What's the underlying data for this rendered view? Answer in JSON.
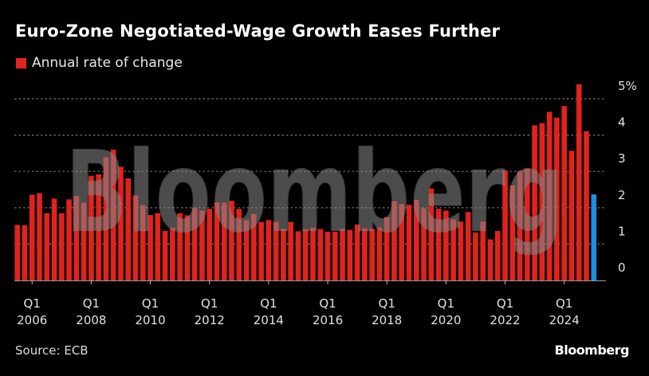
{
  "chart_data": {
    "type": "bar",
    "title": "Euro-Zone Negotiated-Wage Growth Eases Further",
    "legend": [
      {
        "label": "Annual rate of change",
        "color": "#e0231d"
      }
    ],
    "legend_placement": "top-left",
    "xlabel": "",
    "ylabel": "",
    "ylim": [
      0,
      5.6
    ],
    "y_ticks": [
      {
        "value": 0,
        "label": "0"
      },
      {
        "value": 1,
        "label": "1"
      },
      {
        "value": 2,
        "label": "2"
      },
      {
        "value": 3,
        "label": "3"
      },
      {
        "value": 4,
        "label": "4"
      },
      {
        "value": 5,
        "label": "5%"
      }
    ],
    "grid": true,
    "start_period": "2005 Q3",
    "end_period": "2025 Q1",
    "x_ticks": [
      {
        "index": 2,
        "q": "Q1",
        "year": "2006"
      },
      {
        "index": 10,
        "q": "Q1",
        "year": "2008"
      },
      {
        "index": 18,
        "q": "Q1",
        "year": "2010"
      },
      {
        "index": 26,
        "q": "Q1",
        "year": "2012"
      },
      {
        "index": 34,
        "q": "Q1",
        "year": "2014"
      },
      {
        "index": 42,
        "q": "Q1",
        "year": "2016"
      },
      {
        "index": 50,
        "q": "Q1",
        "year": "2018"
      },
      {
        "index": 58,
        "q": "Q1",
        "year": "2020"
      },
      {
        "index": 66,
        "q": "Q1",
        "year": "2022"
      },
      {
        "index": 74,
        "q": "Q1",
        "year": "2024"
      }
    ],
    "values": [
      1.53,
      1.52,
      2.36,
      2.4,
      1.85,
      2.25,
      1.85,
      2.23,
      2.32,
      2.14,
      2.88,
      2.92,
      3.39,
      3.6,
      3.13,
      2.81,
      2.34,
      2.07,
      1.8,
      1.85,
      1.36,
      1.45,
      1.85,
      1.79,
      1.99,
      1.92,
      1.97,
      2.15,
      2.14,
      2.19,
      1.97,
      1.66,
      1.83,
      1.61,
      1.66,
      1.61,
      1.42,
      1.61,
      1.35,
      1.41,
      1.45,
      1.41,
      1.34,
      1.34,
      1.42,
      1.39,
      1.54,
      1.43,
      1.42,
      1.46,
      1.74,
      2.18,
      2.1,
      2.08,
      2.22,
      1.98,
      2.53,
      1.97,
      1.92,
      1.68,
      1.62,
      1.88,
      1.32,
      1.62,
      1.13,
      1.36,
      3.03,
      2.62,
      3.01,
      3.08,
      4.27,
      4.33,
      4.64,
      4.48,
      4.8,
      3.57,
      5.4,
      4.11,
      2.37
    ],
    "highlight_last": true,
    "colors": {
      "bar": "#e0231d",
      "highlight": "#1a8fe3",
      "grid": "#777777",
      "watermark": "#8a8a8a"
    }
  },
  "source": "Source: ECB",
  "logo": "Bloomberg",
  "watermark": "Bloomberg"
}
